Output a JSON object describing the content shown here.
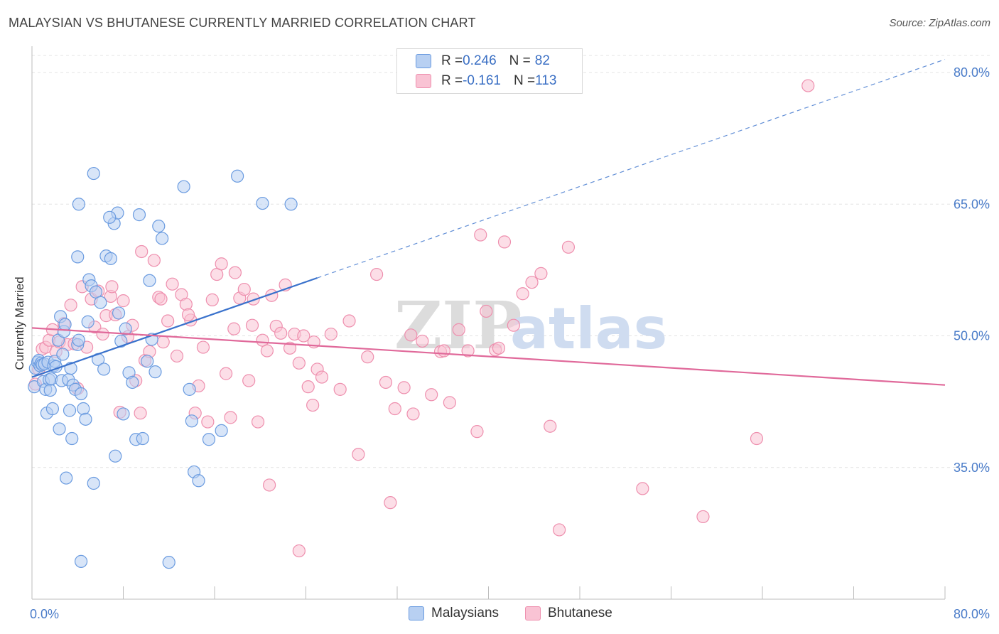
{
  "title": "MALAYSIAN VS BHUTANESE CURRENTLY MARRIED CORRELATION CHART",
  "source": "Source: ZipAtlas.com",
  "watermark": {
    "zip": "ZIP",
    "atlas": "atlas"
  },
  "legend": {
    "rows": [
      {
        "r_label": "R = ",
        "r_value": "0.246",
        "n_label": "N = ",
        "n_value": "82"
      },
      {
        "r_label": "R = ",
        "r_value": "-0.161",
        "n_label": "N = ",
        "n_value": "113"
      }
    ]
  },
  "colors": {
    "blue_fill": "#b8d0f2",
    "blue_stroke": "#6a9be0",
    "blue_line": "#3a72cc",
    "pink_fill": "#f9c3d4",
    "pink_stroke": "#ee8fae",
    "pink_line": "#e0699a",
    "grid": "#e3e3e3",
    "tick_text": "#4a7cc9"
  },
  "chart_data": {
    "type": "scatter",
    "ylabel": "Currently Married",
    "xlim": [
      0,
      80
    ],
    "ylim": [
      20,
      83
    ],
    "x_tick_labels": [
      "0.0%",
      "80.0%"
    ],
    "y_ticks": [
      35,
      50,
      65,
      80
    ],
    "y_tick_labels": [
      "35.0%",
      "50.0%",
      "65.0%",
      "80.0%"
    ],
    "grid": "horizontal dashed",
    "legend_position": "bottom",
    "series": [
      {
        "name": "Malaysians",
        "r": 0.246,
        "n": 82,
        "trend": {
          "x0": 0.0,
          "y0": 45.3,
          "x1": 25.0,
          "y1": 56.6,
          "dashed_to_x": 80.0,
          "dashed_to_y": 81.5
        },
        "points": [
          [
            0.2,
            44.2
          ],
          [
            0.3,
            46.3
          ],
          [
            0.5,
            47.0
          ],
          [
            0.6,
            47.2
          ],
          [
            0.7,
            46.6
          ],
          [
            0.8,
            46.9
          ],
          [
            0.9,
            46.7
          ],
          [
            1.0,
            44.8
          ],
          [
            1.1,
            46.8
          ],
          [
            1.2,
            43.9
          ],
          [
            1.3,
            41.2
          ],
          [
            1.4,
            47.0
          ],
          [
            1.5,
            45.0
          ],
          [
            1.6,
            43.8
          ],
          [
            1.7,
            45.1
          ],
          [
            1.8,
            41.7
          ],
          [
            1.9,
            46.6
          ],
          [
            2.0,
            47.1
          ],
          [
            2.1,
            46.5
          ],
          [
            2.3,
            49.5
          ],
          [
            2.4,
            39.4
          ],
          [
            2.5,
            52.2
          ],
          [
            2.6,
            44.9
          ],
          [
            2.7,
            47.9
          ],
          [
            2.8,
            50.5
          ],
          [
            2.9,
            51.3
          ],
          [
            3.0,
            33.8
          ],
          [
            3.2,
            45.0
          ],
          [
            3.3,
            41.5
          ],
          [
            3.4,
            46.3
          ],
          [
            3.5,
            38.3
          ],
          [
            3.6,
            44.4
          ],
          [
            3.8,
            43.9
          ],
          [
            4.0,
            49.0
          ],
          [
            4.1,
            49.5
          ],
          [
            4.3,
            43.4
          ],
          [
            4.5,
            41.7
          ],
          [
            4.7,
            40.5
          ],
          [
            4.9,
            51.6
          ],
          [
            5.0,
            56.4
          ],
          [
            5.2,
            55.7
          ],
          [
            5.4,
            33.2
          ],
          [
            5.6,
            55.0
          ],
          [
            5.8,
            47.3
          ],
          [
            6.0,
            53.8
          ],
          [
            6.3,
            46.2
          ],
          [
            6.5,
            59.1
          ],
          [
            6.9,
            58.8
          ],
          [
            7.3,
            36.3
          ],
          [
            7.6,
            52.6
          ],
          [
            7.8,
            49.4
          ],
          [
            8.0,
            41.1
          ],
          [
            8.2,
            50.8
          ],
          [
            8.5,
            45.8
          ],
          [
            8.8,
            44.7
          ],
          [
            9.1,
            38.2
          ],
          [
            9.4,
            63.8
          ],
          [
            9.7,
            38.3
          ],
          [
            10.1,
            47.1
          ],
          [
            10.3,
            56.3
          ],
          [
            10.5,
            49.6
          ],
          [
            10.8,
            45.9
          ],
          [
            11.1,
            62.5
          ],
          [
            11.4,
            61.1
          ],
          [
            4.1,
            65.0
          ],
          [
            5.4,
            68.5
          ],
          [
            7.2,
            62.8
          ],
          [
            7.5,
            64.0
          ],
          [
            13.3,
            67.0
          ],
          [
            13.8,
            43.9
          ],
          [
            14.0,
            40.3
          ],
          [
            14.2,
            34.5
          ],
          [
            14.6,
            33.5
          ],
          [
            15.5,
            38.2
          ],
          [
            16.6,
            39.2
          ],
          [
            18.0,
            68.2
          ],
          [
            20.2,
            65.1
          ],
          [
            22.7,
            65.0
          ],
          [
            12.0,
            24.2
          ],
          [
            4.3,
            24.3
          ],
          [
            4.0,
            59.0
          ],
          [
            6.8,
            63.5
          ]
        ]
      },
      {
        "name": "Bhutanese",
        "r": -0.161,
        "n": 113,
        "trend": {
          "x0": 0.0,
          "y0": 50.9,
          "x1": 80.0,
          "y1": 44.4
        },
        "points": [
          [
            0.3,
            44.5
          ],
          [
            0.6,
            46.2
          ],
          [
            0.9,
            48.5
          ],
          [
            1.2,
            48.7
          ],
          [
            1.5,
            49.5
          ],
          [
            1.8,
            50.7
          ],
          [
            2.1,
            48.2
          ],
          [
            2.4,
            49.3
          ],
          [
            2.8,
            51.4
          ],
          [
            3.1,
            49.0
          ],
          [
            3.4,
            53.5
          ],
          [
            3.7,
            49.1
          ],
          [
            4.0,
            44.0
          ],
          [
            4.4,
            55.6
          ],
          [
            4.8,
            48.7
          ],
          [
            5.2,
            54.2
          ],
          [
            5.5,
            51.0
          ],
          [
            5.8,
            55.1
          ],
          [
            6.2,
            50.2
          ],
          [
            6.5,
            52.3
          ],
          [
            6.9,
            54.5
          ],
          [
            7.3,
            52.4
          ],
          [
            7.7,
            41.3
          ],
          [
            8.0,
            54.0
          ],
          [
            8.4,
            49.9
          ],
          [
            8.8,
            51.2
          ],
          [
            9.1,
            44.9
          ],
          [
            9.5,
            41.2
          ],
          [
            9.9,
            47.2
          ],
          [
            10.3,
            48.2
          ],
          [
            10.7,
            58.6
          ],
          [
            11.1,
            54.4
          ],
          [
            11.5,
            49.3
          ],
          [
            11.9,
            51.7
          ],
          [
            12.3,
            55.9
          ],
          [
            12.7,
            47.7
          ],
          [
            13.1,
            54.7
          ],
          [
            13.5,
            53.6
          ],
          [
            13.9,
            51.8
          ],
          [
            14.3,
            41.2
          ],
          [
            14.6,
            44.3
          ],
          [
            15.0,
            48.7
          ],
          [
            15.4,
            40.2
          ],
          [
            15.8,
            54.1
          ],
          [
            16.2,
            57.0
          ],
          [
            16.6,
            58.2
          ],
          [
            17.0,
            45.7
          ],
          [
            17.4,
            40.7
          ],
          [
            17.8,
            57.2
          ],
          [
            18.2,
            54.3
          ],
          [
            18.6,
            55.3
          ],
          [
            19.0,
            44.9
          ],
          [
            19.4,
            54.2
          ],
          [
            19.8,
            40.2
          ],
          [
            20.2,
            49.5
          ],
          [
            20.6,
            48.3
          ],
          [
            21.0,
            54.6
          ],
          [
            21.4,
            51.1
          ],
          [
            21.8,
            50.3
          ],
          [
            22.2,
            55.8
          ],
          [
            22.6,
            48.6
          ],
          [
            23.0,
            50.2
          ],
          [
            23.4,
            46.9
          ],
          [
            23.8,
            50.0
          ],
          [
            24.2,
            44.2
          ],
          [
            24.6,
            42.1
          ],
          [
            25.0,
            46.2
          ],
          [
            25.4,
            45.3
          ],
          [
            26.2,
            50.2
          ],
          [
            27.0,
            43.9
          ],
          [
            27.8,
            51.7
          ],
          [
            28.6,
            36.5
          ],
          [
            29.4,
            47.6
          ],
          [
            30.2,
            57.0
          ],
          [
            31.0,
            44.7
          ],
          [
            31.8,
            41.7
          ],
          [
            32.6,
            44.1
          ],
          [
            33.4,
            41.1
          ],
          [
            34.2,
            49.4
          ],
          [
            35.0,
            43.3
          ],
          [
            35.8,
            48.2
          ],
          [
            36.6,
            42.4
          ],
          [
            37.4,
            50.7
          ],
          [
            38.2,
            48.3
          ],
          [
            39.0,
            39.1
          ],
          [
            39.8,
            52.8
          ],
          [
            40.6,
            48.4
          ],
          [
            41.4,
            60.7
          ],
          [
            42.2,
            51.2
          ],
          [
            43.0,
            54.8
          ],
          [
            43.8,
            56.1
          ],
          [
            44.6,
            57.1
          ],
          [
            45.4,
            39.7
          ],
          [
            46.2,
            27.9
          ],
          [
            47.0,
            60.1
          ],
          [
            20.8,
            33.0
          ],
          [
            23.4,
            25.5
          ],
          [
            31.4,
            31.0
          ],
          [
            39.3,
            61.5
          ],
          [
            40.9,
            48.6
          ],
          [
            53.5,
            32.6
          ],
          [
            58.8,
            29.4
          ],
          [
            63.5,
            38.3
          ],
          [
            68.0,
            78.5
          ],
          [
            7.0,
            55.6
          ],
          [
            9.6,
            59.6
          ],
          [
            11.3,
            54.2
          ],
          [
            13.7,
            52.4
          ],
          [
            17.7,
            50.8
          ],
          [
            19.3,
            51.2
          ],
          [
            24.7,
            49.3
          ],
          [
            33.2,
            50.1
          ],
          [
            36.1,
            48.3
          ]
        ]
      }
    ]
  }
}
